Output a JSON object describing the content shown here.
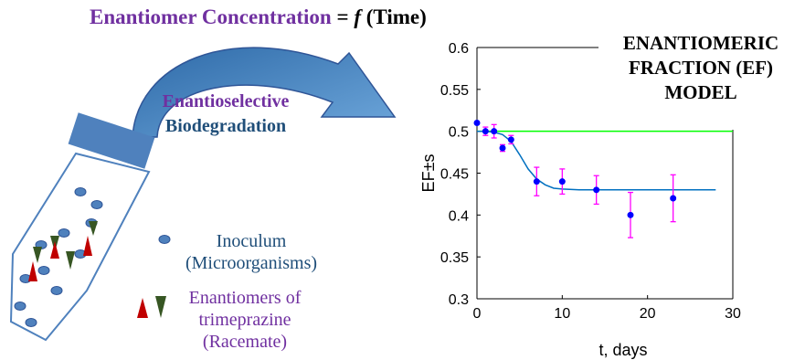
{
  "headline": {
    "part1": "Enantiomer Concentration",
    "part2": " = ",
    "part3": "f",
    "part4": " (Time)"
  },
  "model_title": [
    "ENANTIOMERIC",
    "FRACTION (EF)",
    "MODEL"
  ],
  "process": {
    "line1": "Enantioselective",
    "line2": "Biodegradation"
  },
  "legend": {
    "inoculum": [
      "Inoculum",
      "(Microorganisms)"
    ],
    "enantiomers": [
      "Enantiomers of",
      "trimeprazine",
      "(Racemate)"
    ]
  },
  "colors": {
    "purple": "#7030a0",
    "navy": "#1f4e79",
    "tube_blue": "#4f81bd",
    "arrow_blue": "#5b9bd5",
    "red": "#c00000",
    "green_tri": "#375623",
    "data_point": "#0000ff",
    "error_bar": "#ff00ff",
    "fit_curve": "#0070c0",
    "reference_line": "#00ff00"
  },
  "chart_data": {
    "type": "scatter",
    "xlabel": "t, days",
    "ylabel": "EF±s",
    "xlim": [
      0,
      30
    ],
    "ylim": [
      0.3,
      0.6
    ],
    "xticks": [
      0,
      10,
      20,
      30
    ],
    "yticks": [
      0.3,
      0.35,
      0.4,
      0.45,
      0.5,
      0.55,
      0.6
    ],
    "grid": false,
    "series": [
      {
        "type": "scatter-errorbar",
        "x": [
          0,
          1,
          2,
          3,
          4,
          7,
          10,
          14,
          18,
          23
        ],
        "y": [
          0.51,
          0.5,
          0.5,
          0.48,
          0.49,
          0.44,
          0.44,
          0.43,
          0.4,
          0.42
        ],
        "err": [
          0,
          0.005,
          0.008,
          0.004,
          0.005,
          0.017,
          0.015,
          0.017,
          0.027,
          0.028
        ]
      },
      {
        "type": "fit-line",
        "x": [
          0,
          1,
          2,
          3,
          4,
          5,
          6,
          7,
          8,
          9,
          10,
          12,
          14,
          16,
          18,
          20,
          24,
          28
        ],
        "y": [
          0.5,
          0.5,
          0.499,
          0.496,
          0.488,
          0.472,
          0.455,
          0.443,
          0.436,
          0.432,
          0.431,
          0.43,
          0.43,
          0.43,
          0.43,
          0.43,
          0.43,
          0.43
        ]
      },
      {
        "type": "reference-line",
        "x": [
          0,
          30
        ],
        "y": [
          0.5,
          0.5
        ]
      }
    ]
  }
}
